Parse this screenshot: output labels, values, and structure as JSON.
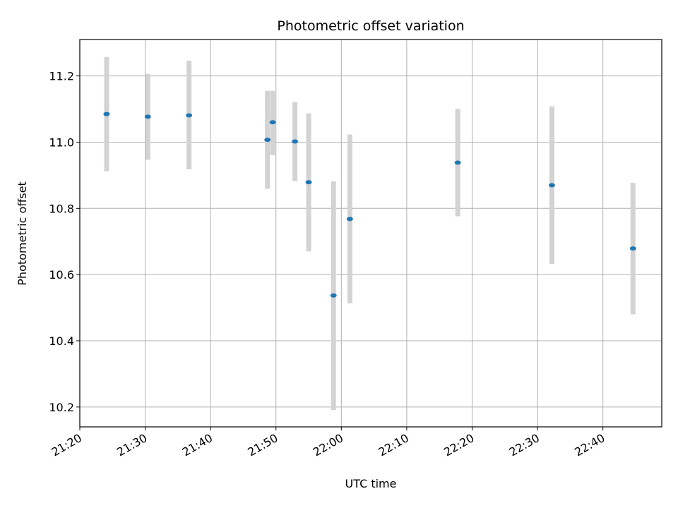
{
  "chart_data": {
    "type": "scatter",
    "title": "Photometric offset variation",
    "xlabel": "UTC time",
    "ylabel": "Photometric offset",
    "x_ticks": [
      "21:20",
      "21:30",
      "21:40",
      "21:50",
      "22:00",
      "22:10",
      "22:20",
      "22:30",
      "22:40"
    ],
    "y_ticks": [
      "10.2",
      "10.4",
      "10.6",
      "10.8",
      "11.0",
      "11.2"
    ],
    "xlim": [
      "21:20",
      "22:49"
    ],
    "ylim": [
      10.14,
      11.31
    ],
    "grid": true,
    "marker_color": "#1f77b4",
    "errorbar_color": "#d3d3d3",
    "points": [
      {
        "x": "21:24.1",
        "y": 11.085,
        "err_low": 10.912,
        "err_high": 11.257
      },
      {
        "x": "21:30.4",
        "y": 11.077,
        "err_low": 10.947,
        "err_high": 11.206
      },
      {
        "x": "21:36.7",
        "y": 11.081,
        "err_low": 10.918,
        "err_high": 11.246
      },
      {
        "x": "21:48.7",
        "y": 11.007,
        "err_low": 10.859,
        "err_high": 11.155
      },
      {
        "x": "21:49.5",
        "y": 11.06,
        "err_low": 10.961,
        "err_high": 11.155
      },
      {
        "x": "21:52.9",
        "y": 11.002,
        "err_low": 10.882,
        "err_high": 11.121
      },
      {
        "x": "21:55.0",
        "y": 10.879,
        "err_low": 10.67,
        "err_high": 11.087
      },
      {
        "x": "21:58.8",
        "y": 10.537,
        "err_low": 10.191,
        "err_high": 10.881
      },
      {
        "x": "22:01.3",
        "y": 10.768,
        "err_low": 10.513,
        "err_high": 11.023
      },
      {
        "x": "22:17.8",
        "y": 10.938,
        "err_low": 10.776,
        "err_high": 11.1
      },
      {
        "x": "22:32.2",
        "y": 10.87,
        "err_low": 10.632,
        "err_high": 11.108
      },
      {
        "x": "22:44.6",
        "y": 10.679,
        "err_low": 10.48,
        "err_high": 10.877
      }
    ]
  }
}
